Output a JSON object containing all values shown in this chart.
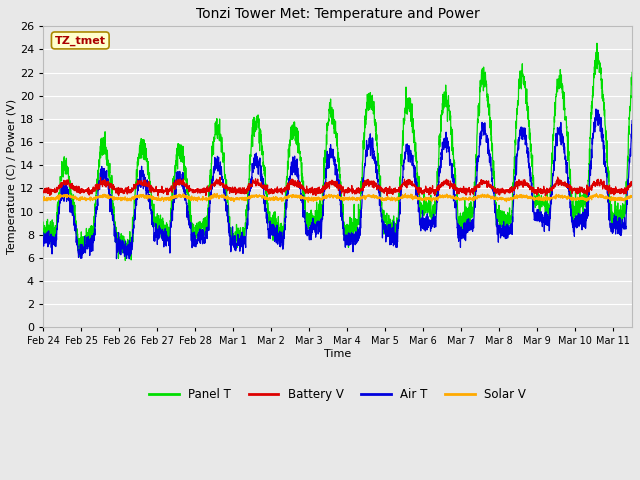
{
  "title": "Tonzi Tower Met: Temperature and Power",
  "xlabel": "Time",
  "ylabel": "Temperature (C) / Power (V)",
  "ylim": [
    0,
    26
  ],
  "yticks": [
    0,
    2,
    4,
    6,
    8,
    10,
    12,
    14,
    16,
    18,
    20,
    22,
    24,
    26
  ],
  "annotation_text": "TZ_tmet",
  "annotation_color": "#aa0000",
  "annotation_bg": "#ffffcc",
  "annotation_border": "#aa8800",
  "bg_color": "#e8e8e8",
  "grid_color": "#ffffff",
  "colors": {
    "panel_t": "#00dd00",
    "battery_v": "#dd0000",
    "air_t": "#0000dd",
    "solar_v": "#ffaa00"
  },
  "legend_labels": [
    "Panel T",
    "Battery V",
    "Air T",
    "Solar V"
  ],
  "x_tick_labels": [
    "Feb 24",
    "Feb 25",
    "Feb 26",
    "Feb 27",
    "Feb 28",
    "Mar 1",
    "Mar 2",
    "Mar 3",
    "Mar 4",
    "Mar 5",
    "Mar 6",
    "Mar 7",
    "Mar 8",
    "Mar 9",
    "Mar 10",
    "Mar 11"
  ],
  "figwidth": 6.4,
  "figheight": 4.8,
  "dpi": 100
}
